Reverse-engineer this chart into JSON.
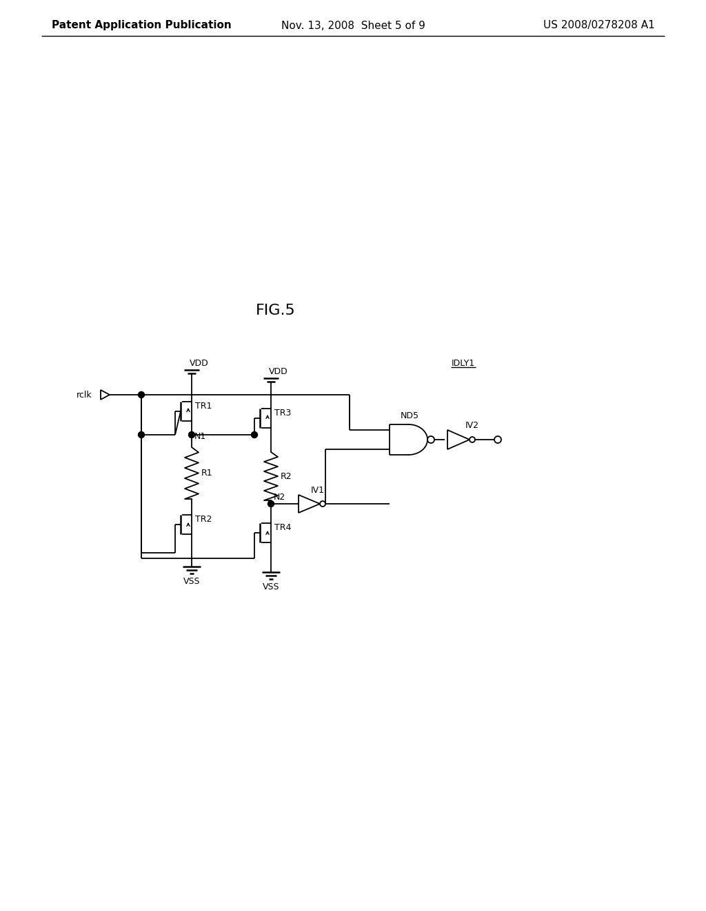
{
  "bg_color": "#ffffff",
  "line_color": "#000000",
  "header_left": "Patent Application Publication",
  "header_mid": "Nov. 13, 2008  Sheet 5 of 9",
  "header_right": "US 2008/0278208 A1",
  "fig_label": "FIG.5",
  "block_label": "IDLY1",
  "font_size_header": 11,
  "font_size_fig": 16,
  "font_size_labels": 9
}
